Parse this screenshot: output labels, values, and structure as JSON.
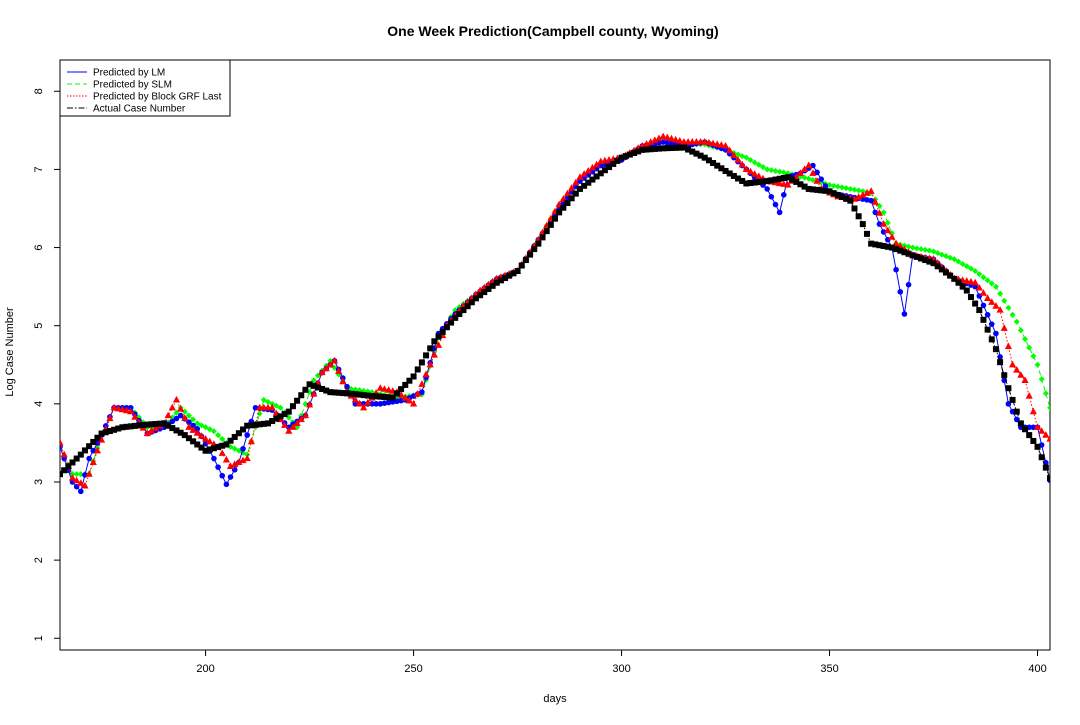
{
  "chart_data": {
    "type": "line",
    "title": "One Week Prediction(Campbell county, Wyoming)",
    "xlabel": "days",
    "ylabel": "Log Case Number",
    "xlim": [
      165,
      403
    ],
    "ylim": [
      0.85,
      8.4
    ],
    "xticks": [
      200,
      250,
      300,
      350,
      400
    ],
    "yticks": [
      1,
      2,
      3,
      4,
      5,
      6,
      7,
      8
    ],
    "grid": false,
    "legend_position": "top-left",
    "series": [
      {
        "name": "Actual Case Number",
        "color": "#000000",
        "line": "dashdot",
        "marker": "square",
        "x": [
          165,
          170,
          175,
          180,
          185,
          190,
          195,
          200,
          205,
          210,
          215,
          220,
          225,
          230,
          235,
          240,
          245,
          250,
          255,
          260,
          265,
          270,
          275,
          280,
          285,
          290,
          295,
          300,
          305,
          310,
          315,
          320,
          325,
          330,
          335,
          340,
          345,
          350,
          355,
          358,
          360,
          365,
          370,
          375,
          380,
          383,
          386,
          390,
          393,
          396,
          400,
          403
        ],
        "y": [
          3.1,
          3.35,
          3.62,
          3.7,
          3.73,
          3.75,
          3.6,
          3.4,
          3.48,
          3.72,
          3.75,
          3.9,
          4.25,
          4.15,
          4.13,
          4.1,
          4.08,
          4.35,
          4.8,
          5.1,
          5.35,
          5.55,
          5.7,
          6.05,
          6.45,
          6.75,
          6.95,
          7.15,
          7.25,
          7.27,
          7.28,
          7.15,
          6.98,
          6.82,
          6.85,
          6.9,
          6.75,
          6.72,
          6.6,
          6.3,
          6.05,
          6.0,
          5.9,
          5.8,
          5.6,
          5.45,
          5.2,
          4.7,
          4.2,
          3.75,
          3.45,
          3.05
        ]
      },
      {
        "name": "Predicted by LM",
        "color": "#0000ff",
        "line": "solid",
        "marker": "circle",
        "x": [
          165,
          168,
          170,
          172,
          175,
          178,
          182,
          186,
          190,
          194,
          198,
          202,
          205,
          208,
          212,
          216,
          220,
          224,
          228,
          231,
          236,
          242,
          248,
          252,
          256,
          260,
          265,
          270,
          275,
          280,
          285,
          290,
          295,
          300,
          305,
          310,
          315,
          320,
          325,
          330,
          335,
          338,
          340,
          343,
          346,
          350,
          355,
          360,
          362,
          365,
          368,
          370,
          375,
          380,
          385,
          390,
          393,
          396,
          400,
          403
        ],
        "y": [
          3.45,
          3.0,
          2.88,
          3.3,
          3.6,
          3.95,
          3.95,
          3.62,
          3.7,
          3.85,
          3.68,
          3.3,
          2.97,
          3.25,
          3.95,
          3.92,
          3.7,
          3.85,
          4.4,
          4.55,
          4.0,
          4.0,
          4.05,
          4.15,
          4.9,
          5.15,
          5.4,
          5.6,
          5.7,
          6.1,
          6.5,
          6.85,
          7.05,
          7.12,
          7.3,
          7.35,
          7.3,
          7.35,
          7.25,
          7.0,
          6.75,
          6.45,
          6.9,
          6.95,
          7.05,
          6.7,
          6.65,
          6.6,
          6.3,
          6.0,
          5.15,
          5.9,
          5.85,
          5.6,
          5.5,
          4.9,
          4.0,
          3.7,
          3.7,
          3.02
        ]
      },
      {
        "name": "Predicted by SLM",
        "color": "#00ff00",
        "line": "dashed",
        "marker": "diamond",
        "x": [
          165,
          168,
          172,
          175,
          178,
          182,
          186,
          190,
          194,
          198,
          202,
          206,
          210,
          214,
          218,
          222,
          226,
          230,
          234,
          240,
          246,
          252,
          256,
          260,
          265,
          270,
          275,
          280,
          285,
          290,
          295,
          300,
          305,
          310,
          315,
          320,
          325,
          330,
          335,
          340,
          345,
          350,
          355,
          360,
          363,
          366,
          370,
          375,
          380,
          385,
          390,
          395,
          400,
          403
        ],
        "y": [
          3.45,
          3.1,
          3.1,
          3.6,
          3.95,
          3.95,
          3.7,
          3.7,
          3.95,
          3.75,
          3.65,
          3.45,
          3.35,
          4.05,
          3.95,
          3.7,
          4.3,
          4.55,
          4.2,
          4.15,
          4.08,
          4.12,
          4.85,
          5.2,
          5.4,
          5.6,
          5.7,
          6.1,
          6.55,
          6.85,
          7.05,
          7.15,
          7.3,
          7.35,
          7.32,
          7.32,
          7.25,
          7.15,
          7.0,
          6.95,
          6.88,
          6.8,
          6.75,
          6.7,
          6.45,
          6.05,
          6.0,
          5.95,
          5.85,
          5.7,
          5.5,
          5.05,
          4.5,
          3.95
        ]
      },
      {
        "name": "Predicted by Block GRF Last",
        "color": "#ff0000",
        "line": "dotted",
        "marker": "triangle",
        "x": [
          165,
          168,
          171,
          174,
          178,
          182,
          186,
          190,
          193,
          196,
          200,
          203,
          206,
          210,
          213,
          216,
          220,
          224,
          228,
          231,
          234,
          238,
          242,
          246,
          250,
          254,
          258,
          262,
          266,
          270,
          275,
          280,
          285,
          290,
          295,
          300,
          305,
          310,
          315,
          320,
          325,
          330,
          335,
          340,
          345,
          348,
          352,
          356,
          360,
          363,
          366,
          370,
          375,
          380,
          385,
          388,
          391,
          394,
          397,
          400,
          403
        ],
        "y": [
          3.5,
          3.05,
          2.95,
          3.4,
          3.95,
          3.9,
          3.62,
          3.75,
          4.05,
          3.7,
          3.55,
          3.45,
          3.2,
          3.3,
          3.95,
          3.95,
          3.65,
          3.85,
          4.4,
          4.55,
          4.15,
          3.95,
          4.2,
          4.15,
          4.0,
          4.5,
          5.0,
          5.25,
          5.45,
          5.6,
          5.7,
          6.1,
          6.55,
          6.9,
          7.1,
          7.15,
          7.3,
          7.42,
          7.35,
          7.35,
          7.3,
          7.0,
          6.85,
          6.8,
          7.05,
          6.75,
          6.65,
          6.62,
          6.72,
          6.3,
          6.05,
          5.9,
          5.85,
          5.6,
          5.55,
          5.35,
          5.2,
          4.5,
          4.3,
          3.7,
          3.55
        ]
      }
    ]
  }
}
